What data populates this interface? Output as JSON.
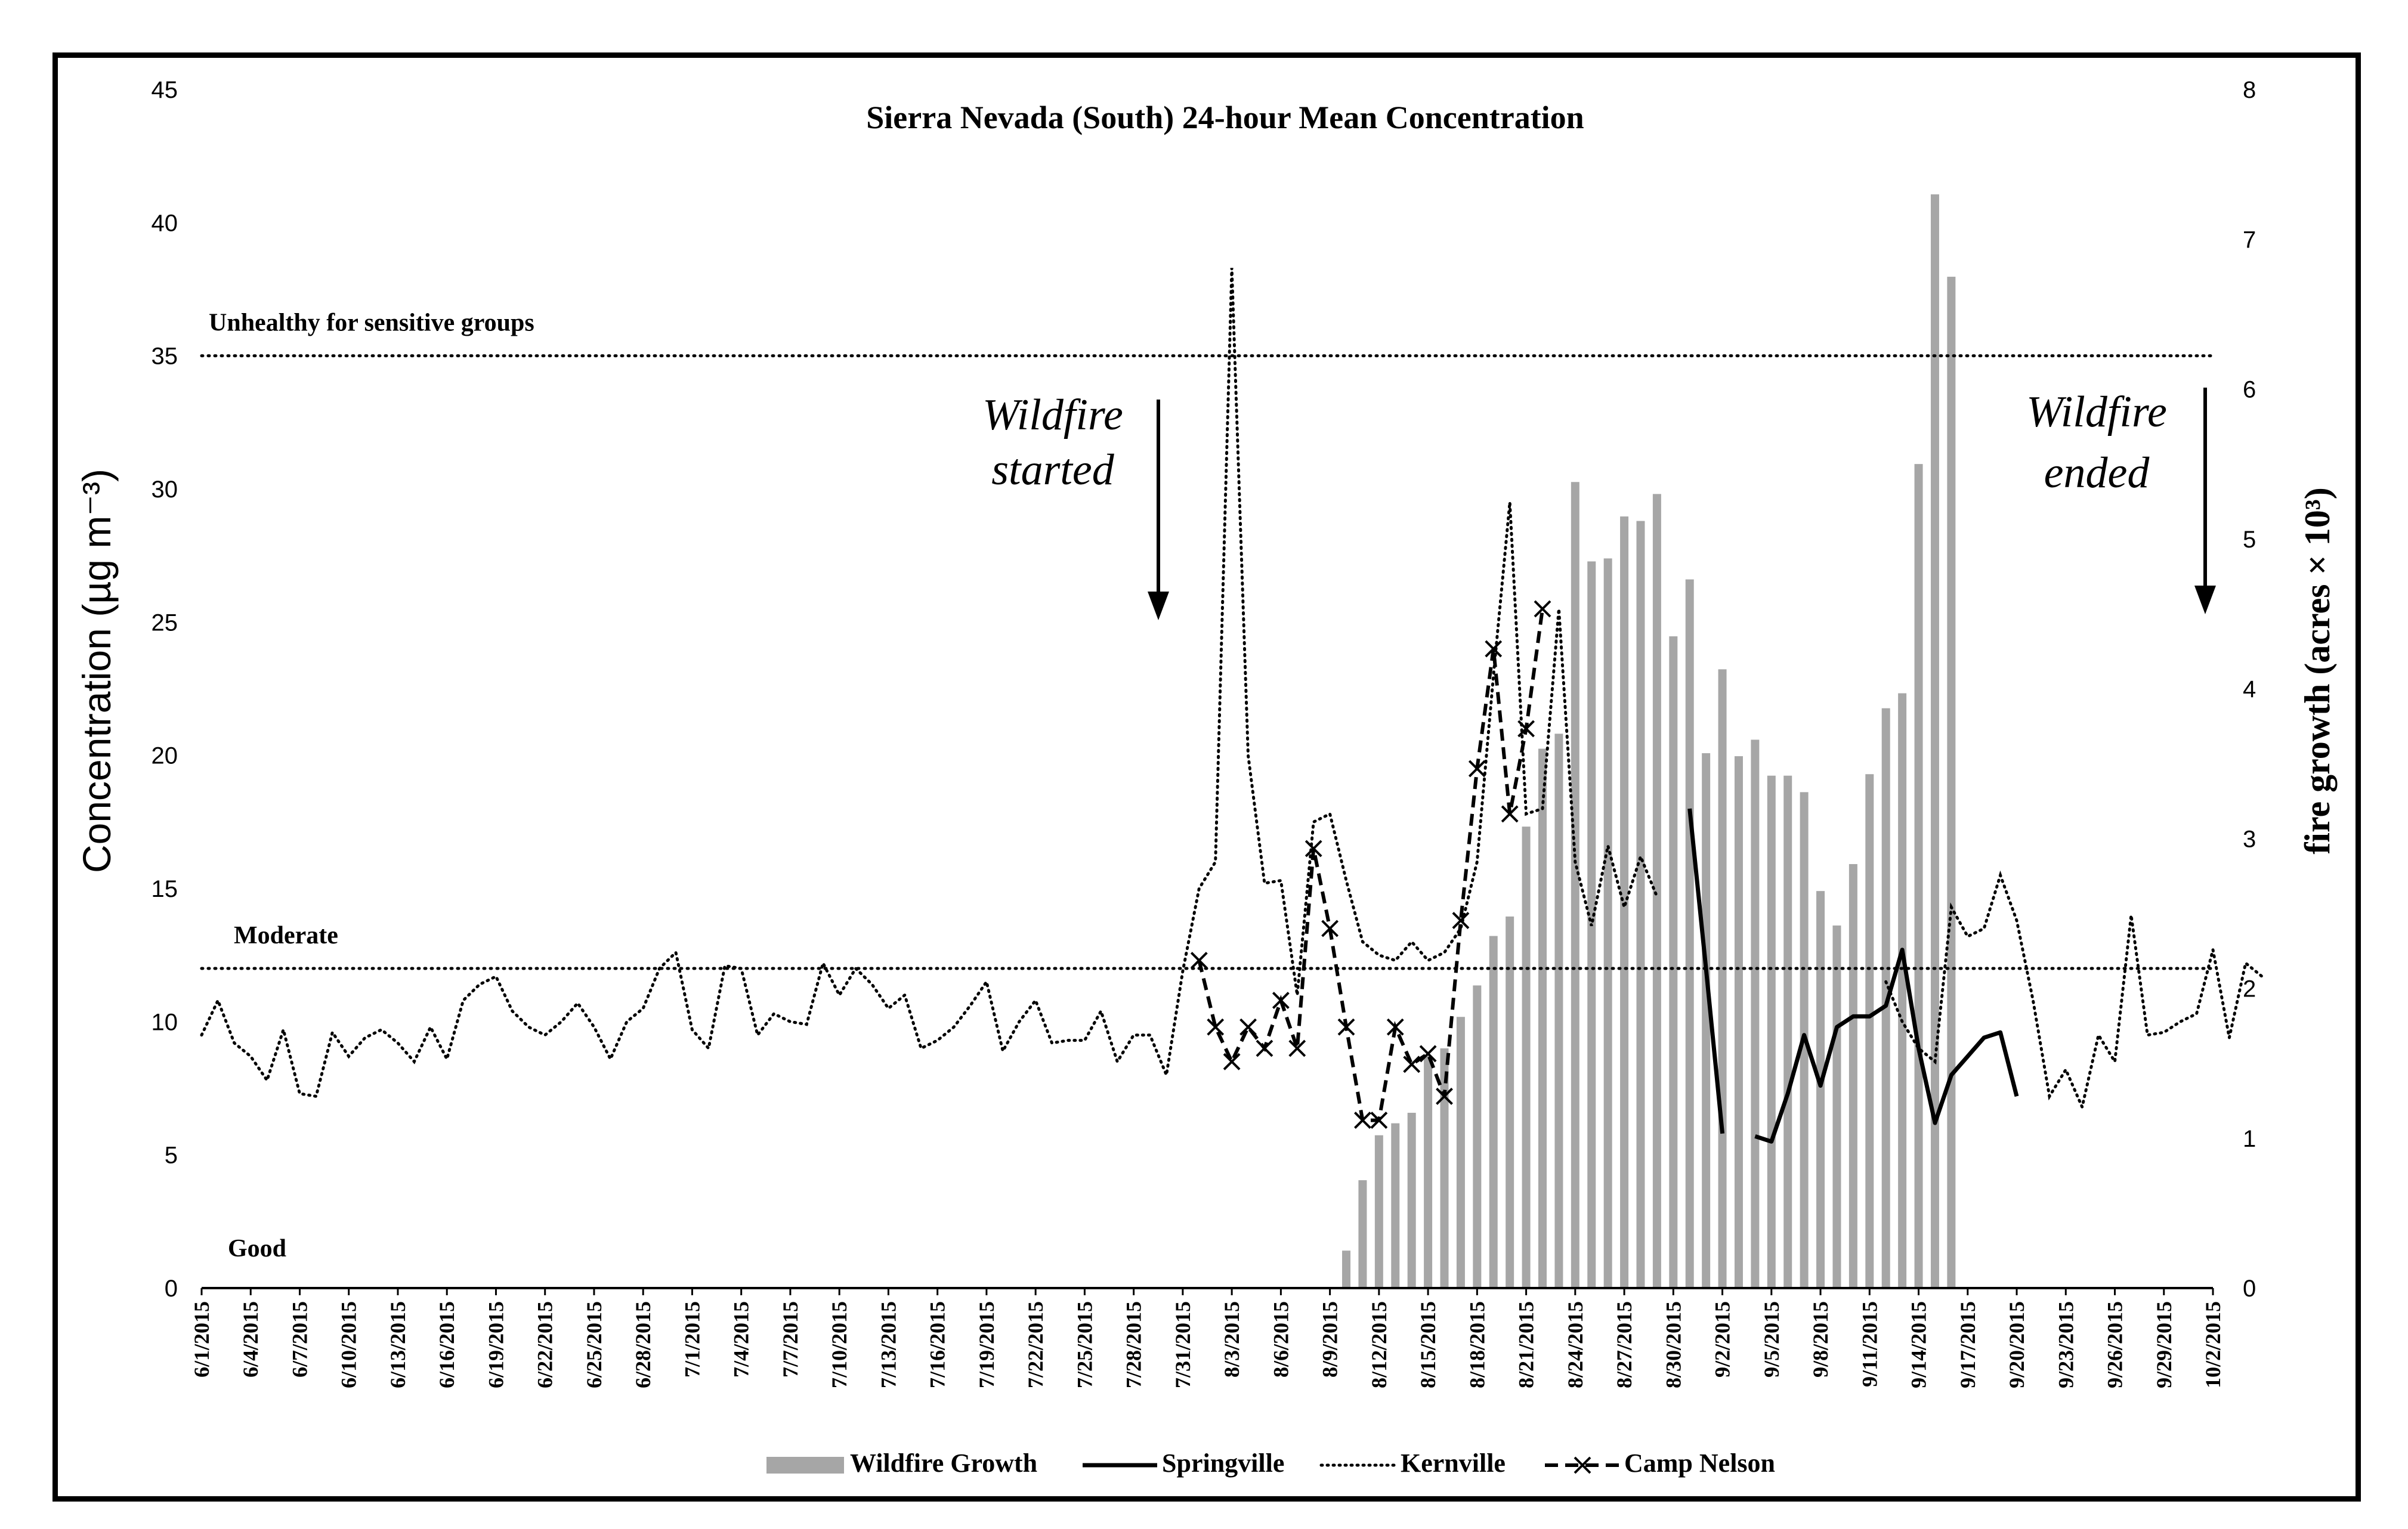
{
  "chart_data": {
    "type": "line",
    "title": "Sierra Nevada (South) 24-hour Mean Concentration",
    "ylabel": "Concentration (µg m⁻³)",
    "y2label": "fire growth (acres × 10³)",
    "ylim": [
      0,
      45
    ],
    "y2lim": [
      0,
      8
    ],
    "yticks": [
      "0",
      "5",
      "10",
      "15",
      "20",
      "25",
      "30",
      "35",
      "40",
      "45"
    ],
    "y2ticks": [
      "0",
      "1",
      "2",
      "3",
      "4",
      "5",
      "6",
      "7",
      "8"
    ],
    "x_tick_labels": [
      "6/1/2015",
      "6/4/2015",
      "6/7/2015",
      "6/10/2015",
      "6/13/2015",
      "6/16/2015",
      "6/19/2015",
      "6/22/2015",
      "6/25/2015",
      "6/28/2015",
      "7/1/2015",
      "7/4/2015",
      "7/7/2015",
      "7/10/2015",
      "7/13/2015",
      "7/16/2015",
      "7/19/2015",
      "7/22/2015",
      "7/25/2015",
      "7/28/2015",
      "7/31/2015",
      "8/3/2015",
      "8/6/2015",
      "8/9/2015",
      "8/12/2015",
      "8/15/2015",
      "8/18/2015",
      "8/21/2015",
      "8/24/2015",
      "8/27/2015",
      "8/30/2015",
      "9/2/2015",
      "9/5/2015",
      "9/8/2015",
      "9/11/2015",
      "9/14/2015",
      "9/17/2015",
      "9/20/2015",
      "9/23/2015",
      "9/26/2015",
      "9/29/2015",
      "10/2/2015"
    ],
    "day_count": 124,
    "thresholds": [
      {
        "label": "Unhealthy for sensitive groups",
        "value": 35
      },
      {
        "label": "Moderate",
        "value": 12
      }
    ],
    "band_labels": [
      {
        "label": "Good",
        "value": 1.5
      }
    ],
    "annotations": {
      "start": {
        "line1": "Wildfire",
        "line2": "started"
      },
      "end": {
        "line1": "Wildfire",
        "line2": "ended"
      }
    },
    "legend": [
      "Wildfire Growth",
      "Springville",
      "Kernville",
      "Camp Nelson"
    ],
    "wildfire_growth": {
      "name": "Wildfire Growth",
      "start_day": 70,
      "values": [
        0.25,
        0.72,
        1.02,
        1.1,
        1.17,
        1.55,
        1.6,
        1.81,
        2.02,
        2.35,
        2.48,
        3.08,
        3.6,
        3.7,
        5.38,
        4.85,
        4.87,
        5.15,
        5.12,
        5.3,
        4.35,
        4.73,
        3.57,
        4.13,
        3.55,
        3.66,
        3.42,
        3.42,
        3.31,
        2.65,
        2.42,
        2.83,
        3.43,
        3.87,
        3.97,
        5.5,
        7.3,
        6.75
      ]
    },
    "series": [
      {
        "name": "Kernville",
        "style": "dotted",
        "start_day": 0,
        "values": [
          9.5,
          10.8,
          9.2,
          8.7,
          7.8,
          9.7,
          7.3,
          7.2,
          9.6,
          8.7,
          9.4,
          9.7,
          9.2,
          8.5,
          9.8,
          8.6,
          10.8,
          11.4,
          11.7,
          10.4,
          9.8,
          9.5,
          10.0,
          10.7,
          9.8,
          8.6,
          10.0,
          10.5,
          12.0,
          12.6,
          9.7,
          9.0,
          12.1,
          12.0,
          9.5,
          10.3,
          10.0,
          9.9,
          12.2,
          11.0,
          12.0,
          11.4,
          10.5,
          11.0,
          9.0,
          9.3,
          9.8,
          10.6,
          11.5,
          8.9,
          10.0,
          10.8,
          9.2,
          9.3,
          9.3,
          10.4,
          8.5,
          9.5,
          9.5,
          8.0,
          11.9,
          15.0,
          16.0,
          38.3,
          20.0,
          15.2,
          15.3,
          11.0,
          17.5,
          17.8,
          15.3,
          13.0,
          12.5,
          12.3,
          13.0,
          12.3,
          12.6,
          13.5,
          16.0,
          23.0,
          29.5,
          17.8,
          18.0,
          25.5,
          16.0,
          13.6,
          16.6,
          14.3,
          16.2,
          14.7,
          null,
          null,
          null,
          null,
          null,
          null,
          null,
          null,
          null,
          null,
          null,
          null,
          null,
          11.5,
          10.0,
          9.0,
          8.5,
          14.3,
          13.2,
          13.5,
          15.5,
          13.8,
          10.8,
          7.2,
          8.2,
          6.8,
          9.5,
          8.5,
          14.0,
          9.5,
          9.6,
          10.0,
          10.3,
          12.7,
          9.4,
          12.2,
          11.7
        ]
      },
      {
        "name": "Camp Nelson",
        "style": "dashed-x",
        "start_day": 61,
        "values": [
          12.3,
          9.8,
          8.5,
          9.8,
          9.0,
          10.8,
          9.0,
          16.5,
          13.5,
          9.8,
          6.3,
          6.3,
          9.8,
          8.4,
          8.8,
          7.2,
          13.8,
          19.5,
          24.0,
          17.8,
          21.0,
          25.5
        ]
      },
      {
        "name": "Springville",
        "style": "solid",
        "start_day": 91,
        "values": [
          18.0,
          12.0,
          5.8,
          null,
          5.7,
          5.5,
          7.3,
          9.5,
          7.6,
          9.8,
          10.2,
          10.2,
          10.6,
          12.7,
          9.0,
          6.2,
          8.0,
          8.7,
          9.4,
          9.6,
          7.2
        ]
      }
    ]
  }
}
